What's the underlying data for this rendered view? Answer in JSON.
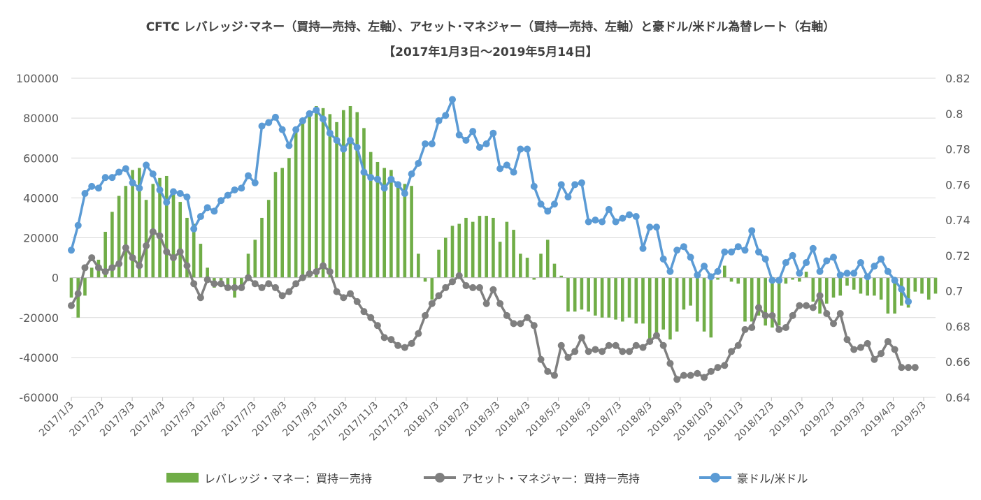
{
  "chart_data": {
    "type": "bar+line",
    "title": "CFTC レバレッジ･マネー（買持―売持、左軸）、アセット･マネジャー（買持―売持、左軸）と豪ドル/米ドル為替レート（右軸）",
    "subtitle": "【2017年1月3日～2019年5月14日】",
    "y_left": {
      "min": -60000,
      "max": 100000,
      "ticks": [
        "100000",
        "80000",
        "60000",
        "40000",
        "20000",
        "0",
        "-20000",
        "-40000",
        "-60000"
      ]
    },
    "y_right": {
      "min": 0.64,
      "max": 0.82,
      "ticks": [
        "0.82",
        "0.8",
        "0.78",
        "0.76",
        "0.74",
        "0.72",
        "0.7",
        "0.68",
        "0.66",
        "0.64"
      ]
    },
    "x_tick_labels": [
      "2017/1/3",
      "2017/2/3",
      "2017/3/3",
      "2017/4/3",
      "2017/5/3",
      "2017/6/3",
      "2017/7/3",
      "2017/8/3",
      "2017/9/3",
      "2017/10/3",
      "2017/11/3",
      "2017/12/3",
      "2018/1/3",
      "2018/2/3",
      "2018/3/3",
      "2018/4/3",
      "2018/5/3",
      "2018/6/3",
      "2018/7/3",
      "2018/8/3",
      "2018/9/3",
      "2018/10/3",
      "2018/11/3",
      "2018/12/3",
      "2019/1/3",
      "2019/2/3",
      "2019/3/3",
      "2019/4/3",
      "2019/5/3"
    ],
    "series": [
      {
        "name": "レバレッジ・マネー：買持ー売持",
        "type": "bar",
        "axis": "left",
        "color": "#70ad47",
        "values": [
          -10000,
          -20000,
          -9000,
          5000,
          9000,
          23000,
          33000,
          41000,
          46000,
          54000,
          55000,
          39000,
          47000,
          50000,
          51000,
          42000,
          38000,
          30000,
          27000,
          17000,
          5000,
          -5000,
          -2000,
          -6000,
          -10000,
          -5000,
          12000,
          19000,
          30000,
          39000,
          53000,
          55000,
          60000,
          75000,
          80000,
          81000,
          86000,
          85000,
          82000,
          78000,
          84000,
          86000,
          83000,
          75000,
          63000,
          58000,
          55000,
          54000,
          48000,
          47000,
          46000,
          12000,
          -2000,
          -11000,
          14000,
          20000,
          26000,
          27000,
          30000,
          28000,
          31000,
          31000,
          30000,
          18000,
          28000,
          24000,
          12000,
          10000,
          -1000,
          12000,
          19000,
          7000,
          1000,
          -17000,
          -17000,
          -16000,
          -17000,
          -19000,
          -20000,
          -20000,
          -21000,
          -22000,
          -20000,
          -23000,
          -23000,
          -31000,
          -29000,
          -26000,
          -31000,
          -27000,
          -16000,
          -14000,
          -22000,
          -27000,
          -30000,
          -1000,
          6000,
          -2000,
          -3000,
          -22000,
          -22000,
          -19000,
          -24000,
          -25000,
          -24000,
          -3000,
          -1000,
          -2000,
          3000,
          -12000,
          -18000,
          -13000,
          -10000,
          -9000,
          -4000,
          -6000,
          -8000,
          -9000,
          -9000,
          -11000,
          -18000,
          -18000,
          -14000,
          -15000,
          -7000,
          -8000,
          -11000,
          -8000
        ]
      },
      {
        "name": "アセット・マネジャー：買持ー売持",
        "type": "line",
        "axis": "left",
        "color": "#7f7f7f",
        "values": [
          -14000,
          -8000,
          5000,
          10000,
          5000,
          3000,
          5000,
          7000,
          15000,
          10000,
          6000,
          16000,
          23000,
          21000,
          13000,
          10000,
          13000,
          6000,
          -3000,
          -10000,
          -1000,
          -3000,
          -3000,
          -5000,
          -5000,
          -5000,
          0,
          -3000,
          -5000,
          -3000,
          -5000,
          -9000,
          -7000,
          -3000,
          0,
          2000,
          3000,
          6000,
          3000,
          -7000,
          -10000,
          -8000,
          -12000,
          -17000,
          -20000,
          -24000,
          -30000,
          -31000,
          -34000,
          -35000,
          -33000,
          -28000,
          -19000,
          -13000,
          -9000,
          -5000,
          -2000,
          1000,
          -4000,
          -5000,
          -5000,
          -13000,
          -6000,
          -13000,
          -19000,
          -23000,
          -23000,
          -20000,
          -24000,
          -41000,
          -47000,
          -49000,
          -34000,
          -40000,
          -37000,
          -30000,
          -37000,
          -36000,
          -37000,
          -34000,
          -34000,
          -37000,
          -37000,
          -34000,
          -35000,
          -32000,
          -29000,
          -34000,
          -43000,
          -51000,
          -49000,
          -49000,
          -48000,
          -50000,
          -47000,
          -45000,
          -44000,
          -37000,
          -34000,
          -26000,
          -25000,
          -15000,
          -19000,
          -19000,
          -26000,
          -25000,
          -19000,
          -14000,
          -14000,
          -15000,
          -9000,
          -18000,
          -23000,
          -18000,
          -31000,
          -36000,
          -35000,
          -33000,
          -41000,
          -38000,
          -32000,
          -36000,
          -45000,
          -45000,
          -45000
        ]
      },
      {
        "name": "豪ドル/米ドル",
        "type": "line",
        "axis": "right",
        "color": "#5b9bd5",
        "values": [
          0.723,
          0.737,
          0.755,
          0.759,
          0.758,
          0.764,
          0.764,
          0.767,
          0.769,
          0.761,
          0.758,
          0.771,
          0.766,
          0.757,
          0.75,
          0.756,
          0.755,
          0.753,
          0.735,
          0.742,
          0.747,
          0.745,
          0.751,
          0.754,
          0.757,
          0.758,
          0.765,
          0.761,
          0.793,
          0.795,
          0.798,
          0.791,
          0.782,
          0.791,
          0.796,
          0.8,
          0.802,
          0.797,
          0.789,
          0.785,
          0.78,
          0.785,
          0.781,
          0.767,
          0.764,
          0.763,
          0.758,
          0.763,
          0.76,
          0.755,
          0.766,
          0.772,
          0.783,
          0.783,
          0.796,
          0.799,
          0.808,
          0.788,
          0.785,
          0.79,
          0.781,
          0.783,
          0.789,
          0.769,
          0.771,
          0.767,
          0.78,
          0.78,
          0.759,
          0.749,
          0.745,
          0.749,
          0.76,
          0.753,
          0.76,
          0.761,
          0.739,
          0.74,
          0.739,
          0.746,
          0.739,
          0.741,
          0.743,
          0.742,
          0.724,
          0.736,
          0.736,
          0.718,
          0.711,
          0.723,
          0.725,
          0.719,
          0.709,
          0.714,
          0.708,
          0.711,
          0.722,
          0.722,
          0.725,
          0.723,
          0.734,
          0.722,
          0.718,
          0.706,
          0.706,
          0.716,
          0.72,
          0.71,
          0.716,
          0.724,
          0.711,
          0.717,
          0.719,
          0.709,
          0.71,
          0.71,
          0.716,
          0.708,
          0.714,
          0.718,
          0.711,
          0.706,
          0.701,
          0.694
        ]
      }
    ]
  }
}
